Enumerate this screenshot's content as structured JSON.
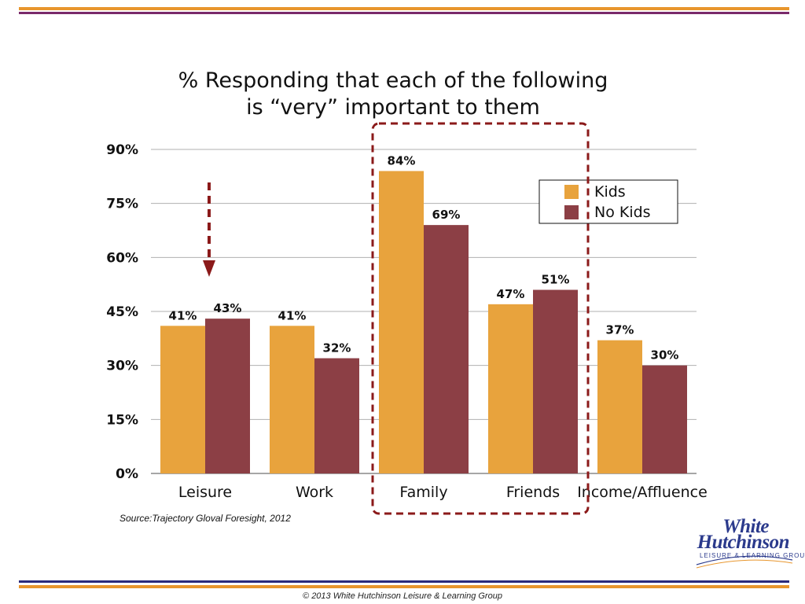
{
  "title_line1": "% Responding that each of the following",
  "title_line2": "is “very” important to them",
  "source": "Source:Trajectory Gloval Foresight, 2012",
  "footer": "© 2013 White Hutchinson Leisure & Learning Group",
  "logo": {
    "line1": "White",
    "line2": "Hutchinson",
    "arc": "LEISURE & LEARNING GROUP"
  },
  "colors": {
    "kids": "#e8a33d",
    "no_kids": "#8c3f45",
    "highlight": "#8b1a1a",
    "rule_orange": "#e8962d",
    "rule_purple": "#7a2a6a"
  },
  "chart_data": {
    "type": "bar",
    "title": "% Responding that each of the following is “very” important to them",
    "categories": [
      "Leisure",
      "Work",
      "Family",
      "Friends",
      "Income/Affluence"
    ],
    "series": [
      {
        "name": "Kids",
        "values": [
          41,
          41,
          84,
          47,
          37
        ],
        "labels": [
          "41%",
          "41%",
          "84%",
          "47%",
          "37%"
        ]
      },
      {
        "name": "No Kids",
        "values": [
          43,
          32,
          69,
          51,
          30
        ],
        "labels": [
          "43%",
          "32%",
          "69%",
          "51%",
          "30%"
        ]
      }
    ],
    "ylim": [
      0,
      90
    ],
    "yticks": [
      0,
      15,
      30,
      45,
      60,
      75,
      90
    ],
    "ytick_labels": [
      "0%",
      "15%",
      "30%",
      "45%",
      "60%",
      "75%",
      "90%"
    ],
    "grid": true,
    "legend": "top-right",
    "annotations": [
      {
        "type": "dashed-arrow",
        "target_category": "Leisure"
      },
      {
        "type": "dashed-box",
        "categories": [
          "Family",
          "Friends"
        ]
      }
    ]
  }
}
